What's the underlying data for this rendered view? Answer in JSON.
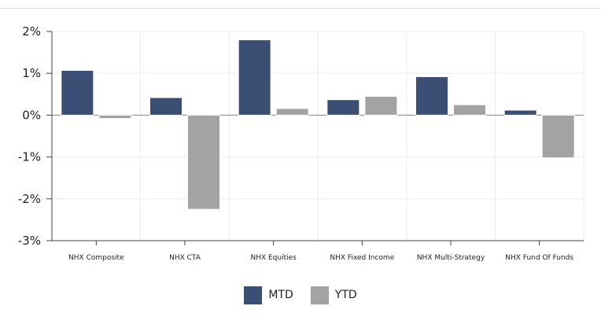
{
  "chart_data": {
    "type": "bar",
    "categories": [
      "NHX Composite",
      "NHX CTA",
      "NHX Equities",
      "NHX Fixed Income",
      "NHX Multi-Strategy",
      "NHX Fund Of Funds"
    ],
    "series": [
      {
        "name": "MTD",
        "color": "#3b4f75",
        "values": [
          1.07,
          0.42,
          1.8,
          0.37,
          0.92,
          0.12
        ]
      },
      {
        "name": "YTD",
        "color": "#a3a3a3",
        "values": [
          -0.08,
          -2.25,
          0.16,
          0.45,
          0.25,
          -1.02
        ]
      }
    ],
    "yticks": [
      2,
      1,
      0,
      -1,
      -2,
      -3
    ],
    "ytick_labels": [
      "2%",
      "1%",
      "0%",
      "-1%",
      "-2%",
      "-3%"
    ],
    "ylim": [
      -3,
      2
    ],
    "grid": true,
    "legend_position": "bottom-center"
  }
}
